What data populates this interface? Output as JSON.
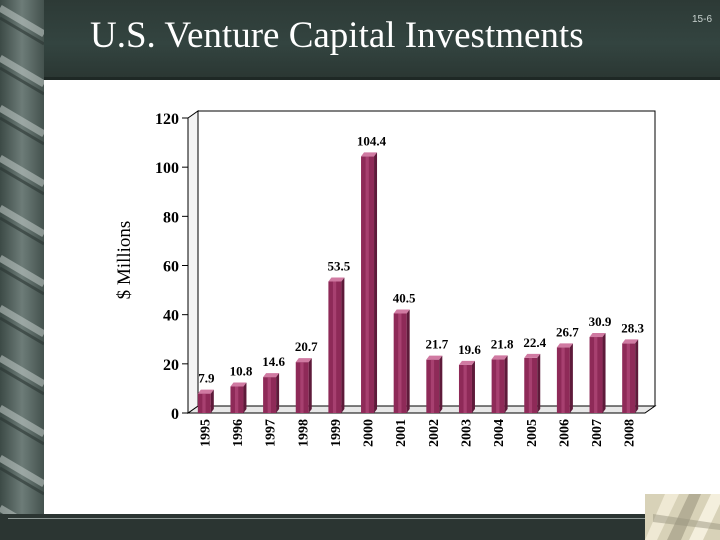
{
  "slide": {
    "title": "U.S. Venture Capital Investments",
    "page_number": "15-6"
  },
  "colors": {
    "header": "#334440",
    "bar_front": "#8e2a58",
    "bar_top": "#d07aa2",
    "background": "#ffffff"
  },
  "chart_data": {
    "type": "bar",
    "title": "U.S. Venture Capital Investments",
    "xlabel": "",
    "ylabel": "$ Millions",
    "ylim": [
      0,
      120
    ],
    "yticks": [
      0,
      20,
      40,
      60,
      80,
      100,
      120
    ],
    "categories": [
      "1995",
      "1996",
      "1997",
      "1998",
      "1999",
      "2000",
      "2001",
      "2002",
      "2003",
      "2004",
      "2005",
      "2006",
      "2007",
      "2008"
    ],
    "values": [
      7.9,
      10.8,
      14.6,
      20.7,
      53.5,
      104.4,
      40.5,
      21.7,
      19.6,
      21.8,
      22.4,
      26.7,
      30.9,
      28.3
    ],
    "data_labels": [
      "7.9",
      "10.8",
      "14.6",
      "20.7",
      "53.5",
      "104.4",
      "40.5",
      "21.7",
      "19.6",
      "21.8",
      "22.4",
      "26.7",
      "30.9",
      "28.3"
    ],
    "grid": false,
    "legend": "none"
  }
}
